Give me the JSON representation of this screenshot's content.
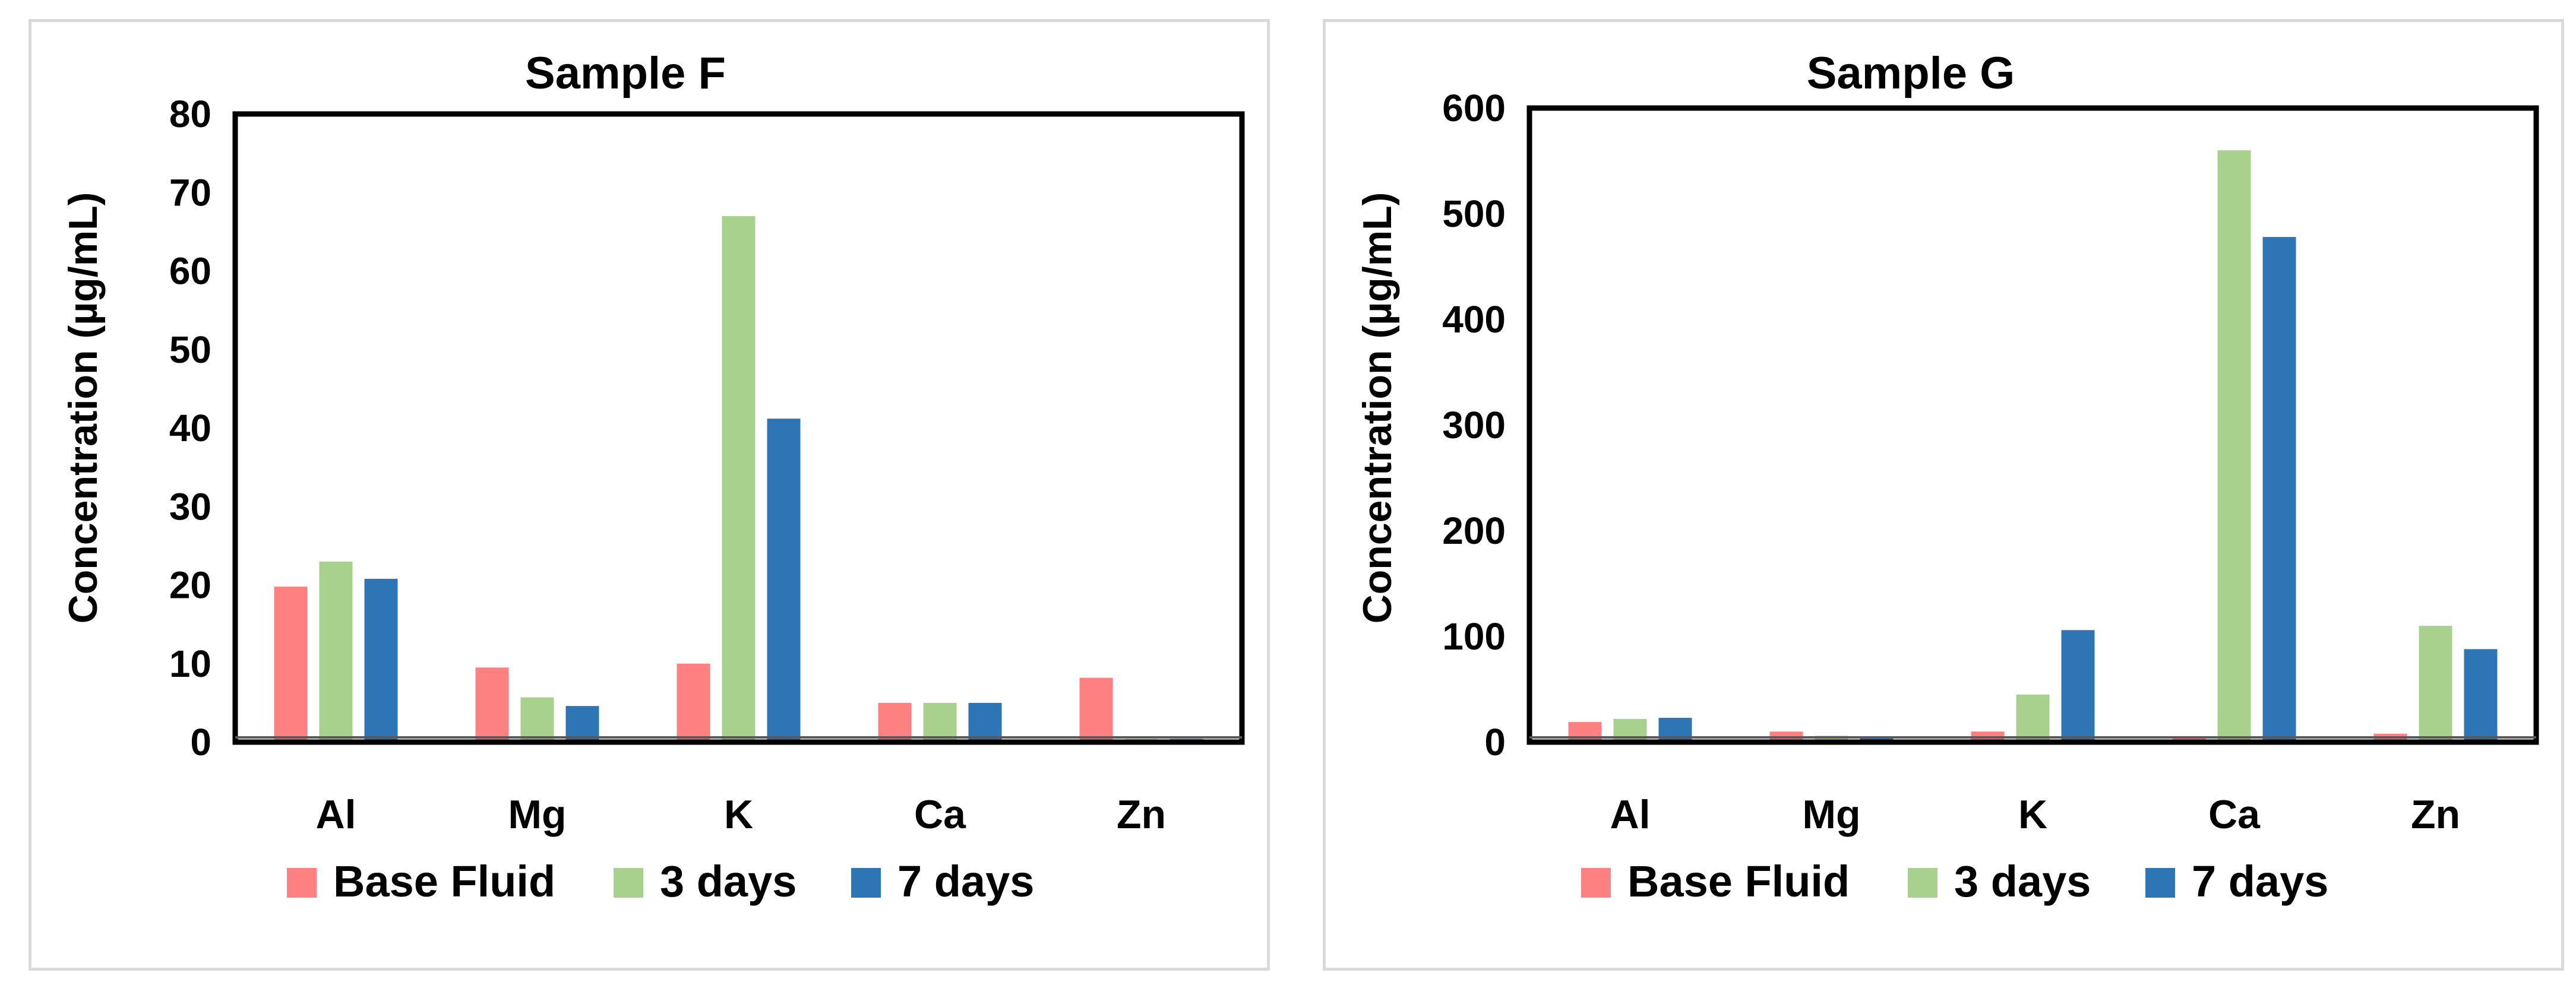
{
  "chart_data": [
    {
      "type": "bar",
      "title": "Sample F",
      "xlabel": "",
      "ylabel": "Concentration (µg/mL)",
      "categories": [
        "Al",
        "Mg",
        "K",
        "Ca",
        "Zn"
      ],
      "ylim": [
        0,
        80
      ],
      "yticks": [
        0,
        10,
        20,
        30,
        40,
        50,
        60,
        70,
        80
      ],
      "grid": false,
      "legend_position": "bottom",
      "series": [
        {
          "name": "Base Fluid",
          "color": "#ff8080",
          "values": [
            19.8,
            9.5,
            10,
            5,
            8.2
          ]
        },
        {
          "name": "3 days",
          "color": "#a9d18e",
          "values": [
            23,
            5.7,
            67,
            5,
            0.4
          ]
        },
        {
          "name": "7 days",
          "color": "#2e75b6",
          "values": [
            20.8,
            4.6,
            41.2,
            5,
            0.4
          ]
        }
      ]
    },
    {
      "type": "bar",
      "title": "Sample G",
      "xlabel": "",
      "ylabel": "Concentration (µg/mL)",
      "categories": [
        "Al",
        "Mg",
        "K",
        "Ca",
        "Zn"
      ],
      "ylim": [
        0,
        600
      ],
      "yticks": [
        0,
        100,
        200,
        300,
        400,
        500,
        600
      ],
      "grid": false,
      "legend_position": "bottom",
      "series": [
        {
          "name": "Base Fluid",
          "color": "#ff8080",
          "values": [
            19,
            10,
            10,
            4,
            8
          ]
        },
        {
          "name": "3 days",
          "color": "#a9d18e",
          "values": [
            22,
            6,
            45,
            560,
            110
          ]
        },
        {
          "name": "7 days",
          "color": "#2e75b6",
          "values": [
            23,
            4,
            106,
            478,
            88
          ]
        }
      ]
    }
  ]
}
